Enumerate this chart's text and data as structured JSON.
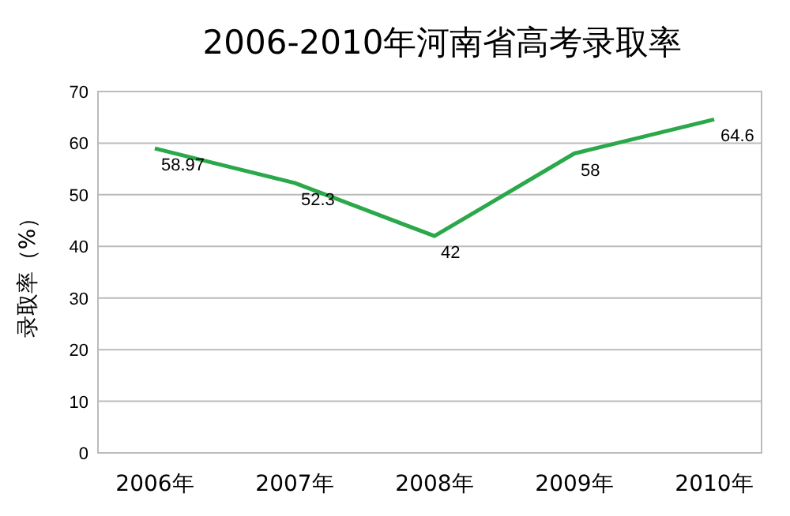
{
  "chart_data": {
    "type": "line",
    "title": "2006-2010年河南省高考录取率",
    "ylabel": "录取率（%）",
    "categories": [
      "2006年",
      "2007年",
      "2008年",
      "2009年",
      "2010年"
    ],
    "series": [
      {
        "color": "#2aa84a",
        "values": [
          58.97,
          52.3,
          42,
          58,
          64.6
        ]
      }
    ],
    "ylim": [
      0,
      70
    ],
    "yticks": [
      0,
      10,
      20,
      30,
      40,
      50,
      60,
      70
    ],
    "grid": "y",
    "data_labels": true,
    "marker": "none",
    "line_style": "solid"
  }
}
